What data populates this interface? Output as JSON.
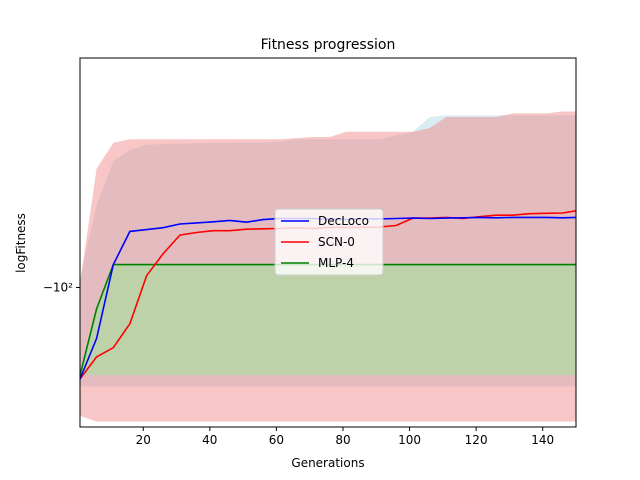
{
  "chart_data": {
    "type": "line",
    "title": "Fitness progression",
    "xlabel": "Generations",
    "ylabel": "logFitness",
    "xlim": [
      1,
      150
    ],
    "x_ticks": [
      20,
      40,
      60,
      80,
      100,
      120,
      140
    ],
    "y_ticks": [
      {
        "value": 0.378,
        "label": "−10²"
      }
    ],
    "y_scale": "symlog (negative), tick labels shown in data units",
    "ylim": [
      0.0,
      1.0
    ],
    "legend": "center",
    "grid": false,
    "x": [
      1,
      6,
      11,
      16,
      21,
      26,
      31,
      36,
      41,
      46,
      51,
      56,
      61,
      66,
      71,
      76,
      81,
      86,
      91,
      96,
      101,
      106,
      111,
      116,
      121,
      126,
      131,
      136,
      141,
      146,
      150
    ],
    "series": [
      {
        "name": "DecLoco",
        "color": "#0000ff",
        "band_color": "#add8e6",
        "values": [
          0.13,
          0.24,
          0.44,
          0.53,
          0.535,
          0.54,
          0.55,
          0.553,
          0.556,
          0.56,
          0.555,
          0.562,
          0.565,
          0.565,
          0.565,
          0.563,
          0.563,
          0.564,
          0.564,
          0.565,
          0.566,
          0.565,
          0.566,
          0.567,
          0.568,
          0.567,
          0.568,
          0.568,
          0.568,
          0.567,
          0.568
        ],
        "upper": [
          0.4,
          0.6,
          0.72,
          0.75,
          0.765,
          0.767,
          0.768,
          0.769,
          0.77,
          0.77,
          0.771,
          0.771,
          0.773,
          0.78,
          0.78,
          0.78,
          0.78,
          0.78,
          0.78,
          0.79,
          0.8,
          0.84,
          0.845,
          0.845,
          0.845,
          0.845,
          0.845,
          0.845,
          0.845,
          0.845,
          0.845
        ],
        "lower": [
          0.11,
          0.11,
          0.11,
          0.11,
          0.11,
          0.11,
          0.11,
          0.11,
          0.11,
          0.11,
          0.11,
          0.11,
          0.11,
          0.11,
          0.11,
          0.11,
          0.11,
          0.11,
          0.11,
          0.11,
          0.11,
          0.11,
          0.11,
          0.11,
          0.11,
          0.11,
          0.11,
          0.11,
          0.11,
          0.11,
          0.11
        ]
      },
      {
        "name": "SCN-0",
        "color": "#ff0000",
        "band_color": "#f08080",
        "values": [
          0.13,
          0.19,
          0.215,
          0.28,
          0.41,
          0.47,
          0.52,
          0.527,
          0.532,
          0.532,
          0.536,
          0.537,
          0.538,
          0.54,
          0.538,
          0.541,
          0.541,
          0.541,
          0.542,
          0.546,
          0.566,
          0.566,
          0.568,
          0.565,
          0.57,
          0.574,
          0.574,
          0.578,
          0.579,
          0.58,
          0.586
        ],
        "upper": [
          0.39,
          0.7,
          0.77,
          0.78,
          0.78,
          0.78,
          0.78,
          0.78,
          0.78,
          0.78,
          0.78,
          0.78,
          0.78,
          0.783,
          0.786,
          0.786,
          0.8,
          0.8,
          0.8,
          0.8,
          0.8,
          0.81,
          0.84,
          0.84,
          0.84,
          0.84,
          0.85,
          0.85,
          0.85,
          0.855,
          0.855
        ],
        "lower": [
          0.03,
          0.015,
          0.015,
          0.015,
          0.015,
          0.015,
          0.015,
          0.015,
          0.015,
          0.015,
          0.015,
          0.015,
          0.015,
          0.015,
          0.015,
          0.015,
          0.015,
          0.015,
          0.015,
          0.015,
          0.015,
          0.015,
          0.015,
          0.015,
          0.015,
          0.015,
          0.015,
          0.015,
          0.015,
          0.015,
          0.015
        ]
      },
      {
        "name": "MLP-4",
        "color": "#008000",
        "band_color": "#90ee90",
        "values": [
          0.14,
          0.32,
          0.44,
          0.44,
          0.44,
          0.44,
          0.44,
          0.44,
          0.44,
          0.44,
          0.44,
          0.44,
          0.44,
          0.44,
          0.44,
          0.44,
          0.44,
          0.44,
          0.44,
          0.44,
          0.44,
          0.44,
          0.44,
          0.44,
          0.44,
          0.44,
          0.44,
          0.44,
          0.44,
          0.44,
          0.44
        ],
        "upper": [
          0.14,
          0.32,
          0.44,
          0.44,
          0.44,
          0.44,
          0.44,
          0.44,
          0.44,
          0.44,
          0.44,
          0.44,
          0.44,
          0.44,
          0.44,
          0.44,
          0.44,
          0.44,
          0.44,
          0.44,
          0.44,
          0.44,
          0.44,
          0.44,
          0.44,
          0.44,
          0.44,
          0.44,
          0.44,
          0.44,
          0.44
        ],
        "lower": [
          0.14,
          0.14,
          0.14,
          0.14,
          0.14,
          0.14,
          0.14,
          0.14,
          0.14,
          0.14,
          0.14,
          0.14,
          0.14,
          0.14,
          0.14,
          0.14,
          0.14,
          0.14,
          0.14,
          0.14,
          0.14,
          0.14,
          0.14,
          0.14,
          0.14,
          0.14,
          0.14,
          0.14,
          0.14,
          0.14,
          0.14
        ]
      }
    ]
  }
}
